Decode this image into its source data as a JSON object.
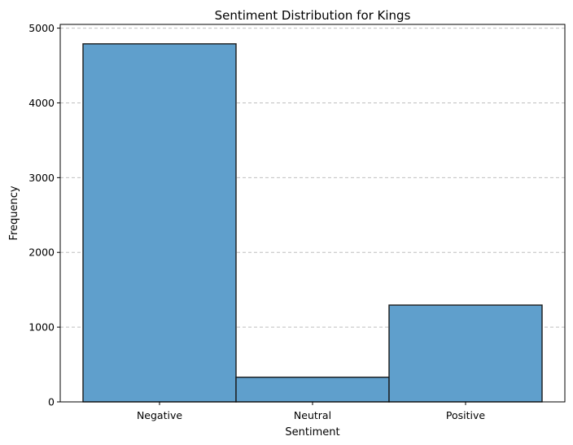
{
  "chart_data": {
    "type": "bar",
    "title": "Sentiment Distribution for Kings",
    "xlabel": "Sentiment",
    "ylabel": "Frequency",
    "categories": [
      "Negative",
      "Neutral",
      "Positive"
    ],
    "values": [
      4790,
      330,
      1295
    ],
    "ylim": [
      0,
      5050
    ],
    "yticks": [
      0,
      1000,
      2000,
      3000,
      4000,
      5000
    ],
    "grid": "y-axis dashed",
    "bar_color": "#5f9fcc",
    "bar_edge_color": "#1a1a1a"
  }
}
